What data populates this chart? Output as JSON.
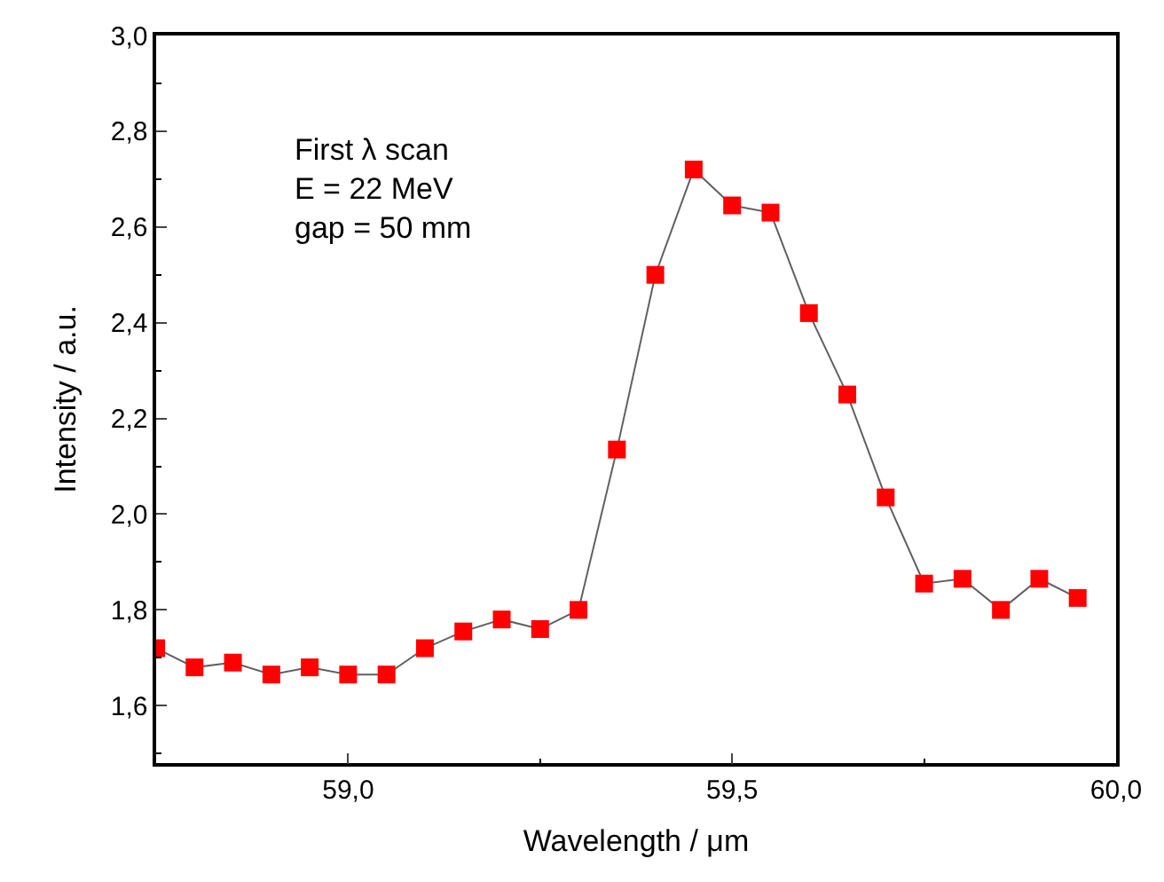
{
  "chart_data": {
    "type": "line",
    "xlabel": "Wavelength / μm",
    "ylabel": "Intensity / a.u.",
    "annotations": [
      "First λ scan\nE = 22 MeV\ngap = 50 mm"
    ],
    "x": [
      58.75,
      58.8,
      58.85,
      58.9,
      58.95,
      59.0,
      59.05,
      59.1,
      59.15,
      59.2,
      59.25,
      59.3,
      59.35,
      59.4,
      59.45,
      59.5,
      59.55,
      59.6,
      59.65,
      59.7,
      59.75,
      59.8,
      59.85,
      59.9,
      59.95
    ],
    "series": [
      {
        "color": "#ff0000",
        "values": [
          1.72,
          1.68,
          1.69,
          1.665,
          1.68,
          1.665,
          1.665,
          1.72,
          1.755,
          1.78,
          1.76,
          1.8,
          2.135,
          2.5,
          2.72,
          2.645,
          2.63,
          2.42,
          2.25,
          2.035,
          1.855,
          1.865,
          1.8,
          1.865,
          1.825
        ]
      }
    ],
    "xlim": [
      58.75,
      60.0
    ],
    "ylim": [
      1.48,
      3.0
    ],
    "xticks": [
      {
        "value": 59.0,
        "label": "59,0"
      },
      {
        "value": 59.5,
        "label": "59,5"
      },
      {
        "value": 60.0,
        "label": "60,0"
      }
    ],
    "yticks": [
      {
        "value": 1.6,
        "label": "1,6"
      },
      {
        "value": 1.8,
        "label": "1,8"
      },
      {
        "value": 2.0,
        "label": "2,0"
      },
      {
        "value": 2.2,
        "label": "2,2"
      },
      {
        "value": 2.4,
        "label": "2,4"
      },
      {
        "value": 2.6,
        "label": "2,6"
      },
      {
        "value": 2.8,
        "label": "2,8"
      },
      {
        "value": 3.0,
        "label": "3,0"
      }
    ],
    "marker": "square",
    "line_style": "solid"
  }
}
